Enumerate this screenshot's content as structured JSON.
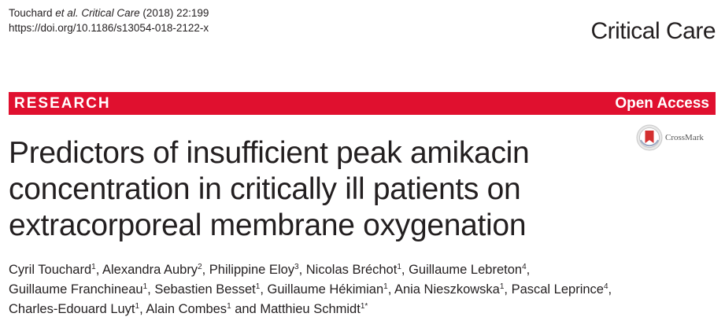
{
  "header": {
    "citation_authors": "Touchard ",
    "citation_etal": "et al. Critical Care",
    "citation_rest": " (2018) 22:199",
    "doi": "https://doi.org/10.1186/s13054-018-2122-x",
    "journal": "Critical Care"
  },
  "banner": {
    "section": "RESEARCH",
    "access": "Open Access",
    "color": "#e0102f"
  },
  "crossmark": {
    "label": "CrossMark",
    "icon": "crossmark-icon"
  },
  "title": {
    "line1": "Predictors of insufficient peak amikacin",
    "line2": "concentration in critically ill patients on",
    "line3": "extracorporeal membrane oxygenation"
  },
  "authors": [
    [
      {
        "name": "Cyril Touchard",
        "sup": "1",
        "sep": ", "
      },
      {
        "name": "Alexandra Aubry",
        "sup": "2",
        "sep": ", "
      },
      {
        "name": "Philippine Eloy",
        "sup": "3",
        "sep": ", "
      },
      {
        "name": "Nicolas Bréchot",
        "sup": "1",
        "sep": ", "
      },
      {
        "name": "Guillaume Lebreton",
        "sup": "4",
        "sep": ","
      }
    ],
    [
      {
        "name": "Guillaume Franchineau",
        "sup": "1",
        "sep": ", "
      },
      {
        "name": "Sebastien Besset",
        "sup": "1",
        "sep": ", "
      },
      {
        "name": "Guillaume Hékimian",
        "sup": "1",
        "sep": ", "
      },
      {
        "name": "Ania Nieszkowska",
        "sup": "1",
        "sep": ", "
      },
      {
        "name": "Pascal Leprince",
        "sup": "4",
        "sep": ","
      }
    ],
    [
      {
        "name": "Charles-Edouard Luyt",
        "sup": "1",
        "sep": ", "
      },
      {
        "name": "Alain Combes",
        "sup": "1",
        "sep": " and "
      },
      {
        "name": "Matthieu Schmidt",
        "sup": "1*",
        "sep": ""
      }
    ]
  ]
}
